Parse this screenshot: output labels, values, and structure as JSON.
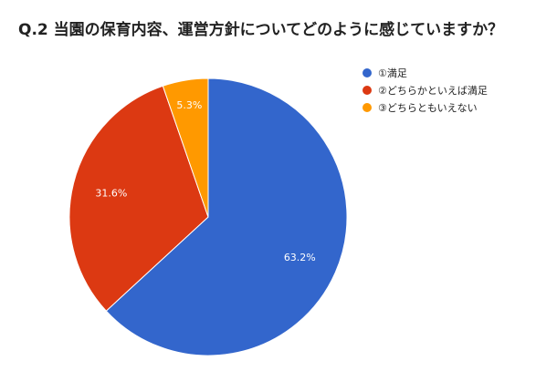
{
  "page": {
    "title": "Q.2 当園の保育内容、運営方針についてどのように感じていますか？"
  },
  "chart_data": {
    "type": "pie",
    "title": "Q.2 当園の保育内容、運営方針についてどのように感じていますか？",
    "categories": [
      "①満足",
      "②どちらかといえば満足",
      "③どちらともいえない"
    ],
    "values": [
      63.2,
      31.6,
      5.3
    ],
    "labels": [
      "63.2%",
      "31.6%",
      "5.3%"
    ],
    "colors": [
      "#3366cc",
      "#dc3912",
      "#ff9900"
    ],
    "start": "12 o'clock",
    "direction": "clockwise",
    "legend_position": "right"
  }
}
